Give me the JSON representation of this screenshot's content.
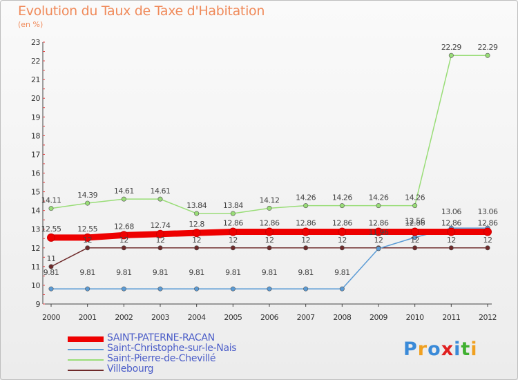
{
  "title": "Evolution du Taux de Taxe d'Habitation",
  "subtitle": "(en %)",
  "logo": {
    "text": "Proxiti",
    "letter_colors": [
      "#3a8ad8",
      "#f0a020",
      "#3a8ad8",
      "#e02020",
      "#3a8ad8",
      "#40b030",
      "#f0a020"
    ]
  },
  "chart_data": {
    "type": "line",
    "title": "Evolution du Taux de Taxe d'Habitation",
    "ylabel": "(en %)",
    "xlabel": "",
    "x": [
      "2000",
      "2001",
      "2002",
      "2003",
      "2004",
      "2005",
      "2006",
      "2007",
      "2008",
      "2009",
      "2010",
      "2011",
      "2012"
    ],
    "ylim": [
      9,
      23
    ],
    "yticks": [
      "9",
      "10",
      "11",
      "12",
      "13",
      "14",
      "15",
      "16",
      "17",
      "18",
      "19",
      "20",
      "21",
      "22",
      "23"
    ],
    "grid": false,
    "legend_position": "bottom-left",
    "series": [
      {
        "name": "SAINT-PATERNE-RACAN",
        "color": "#ee0000",
        "values": [
          12.55,
          12.55,
          12.68,
          12.74,
          12.8,
          12.86,
          12.86,
          12.86,
          12.86,
          12.86,
          12.86,
          12.86,
          12.86
        ],
        "labels": [
          "12.55",
          "12.55",
          "12.68",
          "12.74",
          "12.8",
          "12.86",
          "12.86",
          "12.86",
          "12.86",
          "12.86",
          "12.86",
          "12.86",
          "12.86"
        ]
      },
      {
        "name": "Saint-Christophe-sur-le-Nais",
        "color": "#5b9bd5",
        "values": [
          9.81,
          9.81,
          9.81,
          9.81,
          9.81,
          9.81,
          9.81,
          9.81,
          9.81,
          11.96,
          12.56,
          13.06,
          13.06
        ],
        "labels": [
          "9.81",
          "9.81",
          "9.81",
          "9.81",
          "9.81",
          "9.81",
          "9.81",
          "9.81",
          "9.81",
          "11.96",
          "12.56",
          "13.06",
          "13.06"
        ]
      },
      {
        "name": "Saint-Pierre-de-Chevillé",
        "color": "#99dd77",
        "values": [
          14.11,
          14.39,
          14.61,
          14.61,
          13.84,
          13.84,
          14.12,
          14.26,
          14.26,
          14.26,
          14.26,
          22.29,
          22.29
        ],
        "labels": [
          "14.11",
          "14.39",
          "14.61",
          "14.61",
          "13.84",
          "13.84",
          "14.12",
          "14.26",
          "14.26",
          "14.26",
          "14.26",
          "22.29",
          "22.29"
        ]
      },
      {
        "name": "Villebourg",
        "color": "#6e2a2a",
        "values": [
          11,
          12,
          12,
          12,
          12,
          12,
          12,
          12,
          12,
          12,
          12,
          12,
          12
        ],
        "labels": [
          "11",
          "12",
          "12",
          "12",
          "12",
          "12",
          "12",
          "12",
          "12",
          "12",
          "12",
          "12",
          "12"
        ]
      }
    ]
  }
}
